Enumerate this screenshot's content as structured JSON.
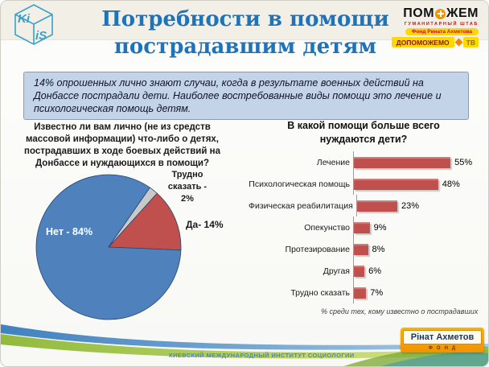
{
  "header": {
    "title": "Потребности в помощи пострадавшим детям",
    "kiis_logo": {
      "face_top": "Ki",
      "face_bottom": "iS"
    },
    "pomozhem_logo": {
      "name_left": "ПОМ",
      "name_right": "ЖЕМ",
      "subtitle": "ГУМАНИТАРНЫЙ ШТАБ",
      "fund_line": "Фонд Рината Ахметова",
      "dopomozhemo": "ДОПОМОЖЕМО",
      "tv": "ТВ"
    }
  },
  "summary_box": {
    "text": "14% опрошенных лично знают случаи, когда в результате военных действий на Донбассе пострадали дети. Наиболее востребованные виды помощи  это лечение и психологическая помощь детям."
  },
  "chart_data": [
    {
      "type": "pie",
      "title": "Известно ли вам лично (не из средств массовой информации) что-либо о детях, пострадавших в ходе боевых действий на Донбассе и нуждающихся в помощи?",
      "start_angle_deg": 42,
      "legend": "none",
      "slices": [
        {
          "label": "Да",
          "value": 14,
          "color": "#c0504d",
          "data_label": "Да- 14%",
          "label_position": "outside-right"
        },
        {
          "label": "Нет",
          "value": 84,
          "color": "#4f81bd",
          "data_label": "Нет - 84%",
          "label_position": "inside-left"
        },
        {
          "label": "Трудно сказать",
          "value": 2,
          "color": "#c9c9c9",
          "data_label": "Трудно сказать - 2%",
          "label_position": "outside-top"
        }
      ]
    },
    {
      "type": "bar",
      "orientation": "horizontal",
      "title": "В какой помощи больше всего нуждаются дети?",
      "categories": [
        "Лечение",
        "Психологическая помощь",
        "Физическая реабилитация",
        "Опекунство",
        "Протезирование",
        "Другая",
        "Трудно сказать"
      ],
      "values": [
        55,
        48,
        23,
        9,
        8,
        6,
        7
      ],
      "value_suffix": "%",
      "bar_color": "#c0504d",
      "xlim": [
        0,
        60
      ],
      "grid": false,
      "footnote": "% среди тех, кому известно о пострадавших"
    }
  ],
  "footer": {
    "institute": "КИЕВСКИЙ МЕЖДУНАРОДНЫЙ ИНСТИТУТ СОЦИОЛОГИИ",
    "akhmetov_logo": {
      "name": "Рінат Ахметов",
      "fond": "ФОНД"
    }
  },
  "colors": {
    "title_blue": "#2173b8",
    "pie_blue": "#4f81bd",
    "bar_red": "#c0504d",
    "pie_gray": "#c9c9c9",
    "summary_bg": "#c3d3e8",
    "band_bg": "#f2efe6",
    "brand_yellow": "#ffd800",
    "brand_orange": "#f08300",
    "brand_red": "#cc1111"
  }
}
